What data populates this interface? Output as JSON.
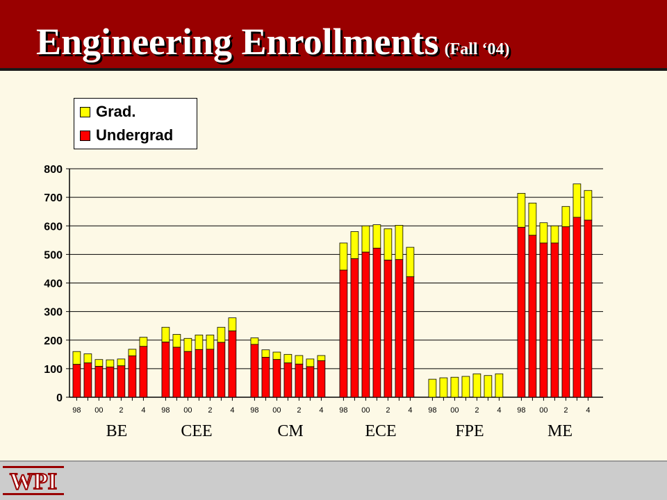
{
  "header": {
    "title": "Engineering Enrollments",
    "subtitle": "(Fall ‘04)"
  },
  "logo": {
    "text": "WPI"
  },
  "colors": {
    "grad": "#ffff00",
    "undergrad": "#ff0000",
    "header": "#990000"
  },
  "chart_data": {
    "type": "bar",
    "stacked": true,
    "ylim": [
      0,
      800
    ],
    "yticks": [
      "0",
      "100",
      "200",
      "300",
      "400",
      "500",
      "600",
      "700",
      "800"
    ],
    "legend": {
      "placement": "top-left",
      "entries": [
        "Grad.",
        "Undergrad"
      ]
    },
    "grid": true,
    "year_ticks": [
      "98",
      "00",
      "2",
      "4"
    ],
    "groups": [
      {
        "name": "BE",
        "undergrad": [
          115,
          120,
          108,
          106,
          110,
          145,
          178
        ],
        "total": [
          160,
          152,
          132,
          131,
          134,
          168,
          210
        ]
      },
      {
        "name": "CEE",
        "undergrad": [
          193,
          175,
          160,
          167,
          168,
          192,
          232
        ],
        "total": [
          245,
          220,
          206,
          218,
          218,
          245,
          278
        ]
      },
      {
        "name": "CM",
        "undergrad": [
          185,
          140,
          132,
          120,
          116,
          107,
          128
        ],
        "total": [
          208,
          166,
          158,
          150,
          146,
          134,
          146
        ]
      },
      {
        "name": "ECE",
        "undergrad": [
          445,
          485,
          508,
          522,
          480,
          482,
          422
        ],
        "total": [
          540,
          580,
          600,
          604,
          590,
          602,
          525
        ]
      },
      {
        "name": "FPE",
        "undergrad": [
          0,
          0,
          0,
          0,
          0,
          0,
          0
        ],
        "total": [
          63,
          68,
          70,
          73,
          82,
          76,
          82
        ]
      },
      {
        "name": "ME",
        "undergrad": [
          595,
          567,
          540,
          540,
          597,
          630,
          620
        ],
        "total": [
          714,
          680,
          611,
          600,
          668,
          747,
          724
        ]
      }
    ]
  }
}
